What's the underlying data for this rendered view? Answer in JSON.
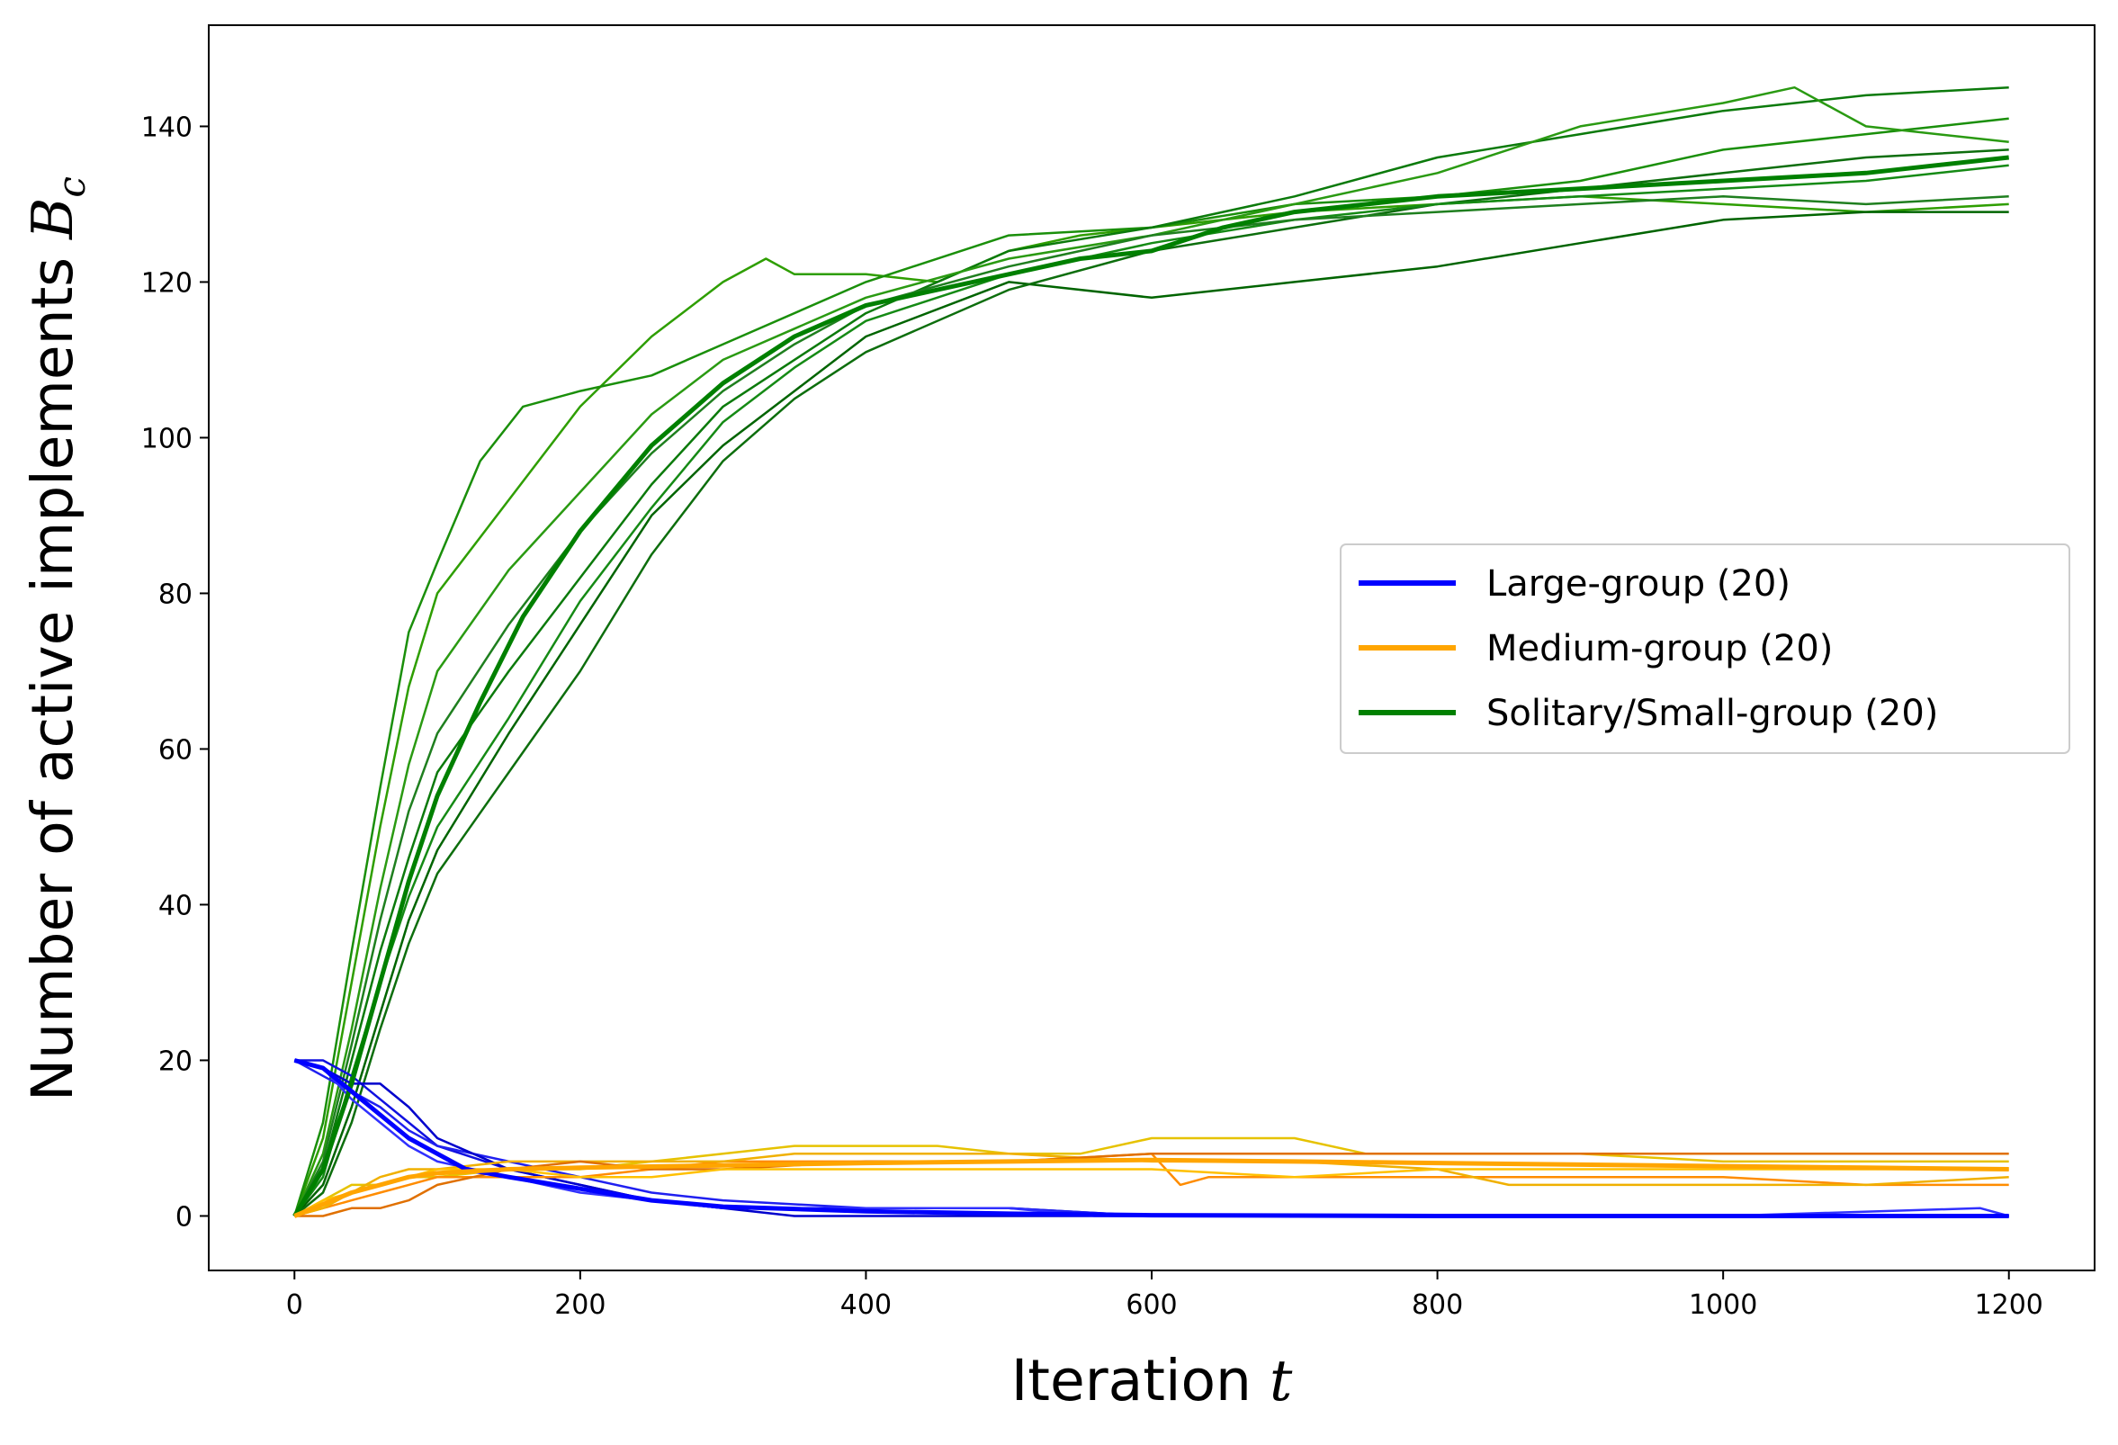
{
  "chart_data": {
    "type": "line",
    "title": "",
    "xlabel": "Iteration",
    "xlabel_symbol": "t",
    "ylabel": "Number of active implements",
    "ylabel_symbol": "B",
    "ylabel_subscript": "c",
    "xlim": [
      -60,
      1260
    ],
    "ylim": [
      -7,
      153
    ],
    "xticks": [
      0,
      200,
      400,
      600,
      800,
      1000,
      1200
    ],
    "yticks": [
      0,
      20,
      40,
      60,
      80,
      100,
      120,
      140
    ],
    "grid": false,
    "legend_position": "center-right",
    "legend": [
      {
        "label": "Large-group (20)",
        "color": "#0000ff"
      },
      {
        "label": "Medium-group (20)",
        "color": "#ffa500"
      },
      {
        "label": "Solitary/Small-group (20)",
        "color": "#008000"
      }
    ],
    "series": [
      {
        "group": "solitary",
        "color": "#008000",
        "mean": true,
        "x": [
          0,
          20,
          40,
          60,
          80,
          100,
          130,
          160,
          200,
          250,
          300,
          350,
          400,
          450,
          500,
          550,
          600,
          650,
          700,
          800,
          900,
          1000,
          1100,
          1200
        ],
        "y": [
          0,
          6,
          17,
          30,
          43,
          54,
          66,
          77,
          88,
          99,
          107,
          113,
          117,
          119,
          121,
          123,
          124,
          127,
          129,
          131,
          132,
          133,
          134,
          136
        ]
      },
      {
        "group": "solitary",
        "color": "#2e9e00",
        "x": [
          0,
          20,
          40,
          60,
          80,
          100,
          150,
          200,
          250,
          300,
          330,
          350,
          400,
          450,
          500,
          550,
          600,
          700,
          800,
          900,
          1000,
          1100,
          1200
        ],
        "y": [
          0,
          10,
          30,
          50,
          68,
          80,
          92,
          104,
          113,
          120,
          123,
          121,
          121,
          120,
          124,
          126,
          127,
          129,
          130,
          131,
          130,
          129,
          130
        ]
      },
      {
        "group": "solitary",
        "color": "#1a8f0a",
        "x": [
          0,
          20,
          40,
          60,
          80,
          100,
          130,
          160,
          200,
          250,
          300,
          400,
          500,
          600,
          700,
          800,
          900,
          1000,
          1100,
          1200
        ],
        "y": [
          0,
          12,
          34,
          55,
          75,
          84,
          97,
          104,
          106,
          108,
          112,
          120,
          126,
          127,
          130,
          131,
          133,
          137,
          139,
          141
        ]
      },
      {
        "group": "solitary",
        "color": "#006400",
        "x": [
          0,
          20,
          40,
          60,
          80,
          100,
          150,
          200,
          250,
          300,
          350,
          400,
          500,
          600,
          700,
          800,
          900,
          1000,
          1100,
          1200
        ],
        "y": [
          0,
          4,
          14,
          26,
          38,
          47,
          62,
          76,
          90,
          99,
          106,
          113,
          120,
          118,
          120,
          122,
          125,
          128,
          129,
          129
        ]
      },
      {
        "group": "solitary",
        "color": "#0b7a0b",
        "x": [
          0,
          20,
          40,
          60,
          80,
          100,
          150,
          200,
          250,
          300,
          350,
          400,
          500,
          600,
          700,
          800,
          900,
          1000,
          1100,
          1200
        ],
        "y": [
          0,
          6,
          20,
          34,
          46,
          57,
          70,
          82,
          94,
          104,
          110,
          116,
          124,
          127,
          131,
          136,
          139,
          142,
          144,
          145
        ]
      },
      {
        "group": "solitary",
        "color": "#2a9a12",
        "x": [
          0,
          20,
          40,
          60,
          80,
          100,
          150,
          200,
          250,
          300,
          350,
          400,
          500,
          600,
          700,
          800,
          900,
          1000,
          1050,
          1100,
          1200
        ],
        "y": [
          0,
          8,
          24,
          42,
          58,
          70,
          83,
          93,
          103,
          110,
          114,
          118,
          123,
          126,
          130,
          134,
          140,
          143,
          145,
          140,
          138
        ]
      },
      {
        "group": "solitary",
        "color": "#0d6e0d",
        "x": [
          0,
          20,
          40,
          60,
          80,
          100,
          150,
          200,
          250,
          300,
          350,
          400,
          500,
          600,
          700,
          800,
          900,
          1000,
          1100,
          1200
        ],
        "y": [
          0,
          3,
          12,
          24,
          35,
          44,
          57,
          70,
          85,
          97,
          105,
          111,
          119,
          124,
          127,
          130,
          132,
          134,
          136,
          137
        ]
      },
      {
        "group": "solitary",
        "color": "#158a15",
        "x": [
          0,
          20,
          40,
          60,
          80,
          100,
          150,
          200,
          250,
          300,
          350,
          400,
          500,
          600,
          700,
          800,
          900,
          1000,
          1100,
          1200
        ],
        "y": [
          0,
          5,
          18,
          30,
          41,
          50,
          64,
          79,
          91,
          102,
          109,
          115,
          121,
          125,
          128,
          130,
          131,
          132,
          133,
          135
        ]
      },
      {
        "group": "solitary",
        "color": "#1f7f1f",
        "x": [
          0,
          20,
          40,
          60,
          80,
          100,
          150,
          200,
          250,
          300,
          350,
          400,
          500,
          600,
          700,
          800,
          900,
          1000,
          1100,
          1200
        ],
        "y": [
          0,
          7,
          22,
          38,
          52,
          62,
          76,
          88,
          98,
          106,
          112,
          117,
          122,
          126,
          128,
          129,
          130,
          131,
          130,
          131
        ]
      },
      {
        "group": "large",
        "color": "#0000ff",
        "mean": true,
        "x": [
          0,
          20,
          40,
          60,
          80,
          100,
          120,
          150,
          200,
          250,
          300,
          400,
          500,
          600,
          800,
          1000,
          1200
        ],
        "y": [
          20,
          19,
          16,
          13,
          10,
          8,
          6,
          5,
          3.5,
          2,
          1.2,
          0.6,
          0.3,
          0.1,
          0,
          0,
          0
        ]
      },
      {
        "group": "large",
        "color": "#1010e0",
        "x": [
          0,
          20,
          40,
          60,
          80,
          100,
          150,
          200,
          250,
          300,
          400,
          500,
          600,
          800,
          1000,
          1200
        ],
        "y": [
          20,
          20,
          18,
          15,
          12,
          9,
          6,
          4,
          2,
          1,
          1,
          1,
          0,
          0,
          0,
          0
        ]
      },
      {
        "group": "large",
        "color": "#2020f0",
        "x": [
          0,
          20,
          40,
          60,
          80,
          100,
          150,
          200,
          250,
          300,
          400,
          500,
          600,
          800,
          1000,
          1200
        ],
        "y": [
          20,
          18,
          16,
          14,
          11,
          9,
          7,
          5,
          3,
          2,
          1,
          1,
          0,
          0,
          0,
          0
        ]
      },
      {
        "group": "large",
        "color": "#0000cc",
        "x": [
          0,
          20,
          40,
          60,
          80,
          100,
          150,
          200,
          250,
          300,
          350,
          400,
          500,
          600,
          800,
          1000,
          1200
        ],
        "y": [
          20,
          19,
          17,
          17,
          14,
          10,
          6,
          4,
          2,
          1,
          0,
          0,
          0,
          0,
          0,
          0,
          0
        ]
      },
      {
        "group": "large",
        "color": "#3030ff",
        "x": [
          0,
          20,
          40,
          60,
          80,
          100,
          150,
          200,
          250,
          300,
          400,
          500,
          560,
          600,
          800,
          1000,
          1180,
          1200
        ],
        "y": [
          20,
          19,
          15,
          12,
          9,
          7,
          5,
          3,
          2,
          1,
          1,
          1,
          0,
          0,
          0,
          0,
          1,
          0
        ]
      },
      {
        "group": "medium",
        "color": "#ffa500",
        "mean": true,
        "x": [
          0,
          20,
          40,
          60,
          80,
          100,
          150,
          200,
          300,
          400,
          500,
          600,
          700,
          800,
          900,
          1000,
          1100,
          1200
        ],
        "y": [
          0,
          1.5,
          3,
          4,
          5,
          5.5,
          6,
          6.2,
          6.5,
          6.8,
          7,
          7.2,
          7,
          6.8,
          6.6,
          6.4,
          6.2,
          6
        ]
      },
      {
        "group": "medium",
        "color": "#e6c200",
        "x": [
          0,
          20,
          40,
          60,
          80,
          100,
          150,
          200,
          250,
          300,
          350,
          400,
          450,
          500,
          550,
          600,
          650,
          700,
          750,
          800,
          900,
          1000,
          1100,
          1200
        ],
        "y": [
          0,
          2,
          4,
          4,
          5,
          5,
          6,
          6,
          7,
          8,
          9,
          9,
          9,
          8,
          8,
          10,
          10,
          10,
          8,
          8,
          8,
          7,
          7,
          7
        ]
      },
      {
        "group": "medium",
        "color": "#ff8c00",
        "x": [
          0,
          20,
          40,
          60,
          80,
          100,
          150,
          200,
          250,
          300,
          350,
          400,
          500,
          600,
          620,
          640,
          700,
          800,
          900,
          1000,
          1100,
          1200
        ],
        "y": [
          0,
          1,
          2,
          3,
          4,
          5,
          5,
          5,
          6,
          7,
          7,
          7,
          7,
          8,
          4,
          5,
          5,
          5,
          5,
          5,
          4,
          4
        ]
      },
      {
        "group": "medium",
        "color": "#f0b000",
        "x": [
          0,
          20,
          40,
          60,
          80,
          100,
          150,
          200,
          250,
          300,
          350,
          400,
          500,
          600,
          700,
          800,
          850,
          900,
          1000,
          1100,
          1200
        ],
        "y": [
          0,
          1,
          3,
          5,
          6,
          6,
          7,
          7,
          7,
          7,
          8,
          8,
          8,
          7,
          7,
          6,
          4,
          4,
          4,
          4,
          5
        ]
      },
      {
        "group": "medium",
        "color": "#e07000",
        "x": [
          0,
          20,
          40,
          60,
          80,
          100,
          150,
          200,
          250,
          300,
          400,
          500,
          600,
          700,
          800,
          900,
          1000,
          1100,
          1200
        ],
        "y": [
          0,
          0,
          1,
          1,
          2,
          4,
          6,
          7,
          6,
          6,
          7,
          7,
          8,
          8,
          8,
          8,
          8,
          8,
          8
        ]
      },
      {
        "group": "medium",
        "color": "#ffc000",
        "x": [
          0,
          20,
          40,
          60,
          80,
          100,
          150,
          200,
          250,
          300,
          400,
          500,
          600,
          700,
          800,
          900,
          1000,
          1100,
          1200
        ],
        "y": [
          0,
          2,
          3,
          4,
          5,
          6,
          6,
          5,
          5,
          6,
          6,
          6,
          6,
          5,
          6,
          6,
          6,
          6,
          6
        ]
      }
    ]
  }
}
